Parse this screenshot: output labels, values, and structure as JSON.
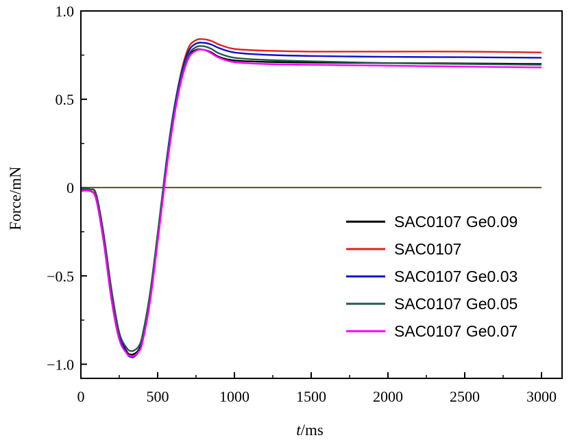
{
  "chart_data": {
    "type": "line",
    "title": "",
    "xlabel_italic": "t",
    "xlabel_rest": "/ms",
    "ylabel": "Force/mN",
    "xlim": [
      0,
      3000
    ],
    "ylim": [
      -1.08,
      1.0
    ],
    "xticks": [
      0,
      500,
      1000,
      1500,
      2000,
      2500,
      3000
    ],
    "xtick_labels": [
      "0",
      "500",
      "1000",
      "1500",
      "2000",
      "2500",
      "3000"
    ],
    "yticks": [
      -1.0,
      -0.5,
      0,
      0.5,
      1.0
    ],
    "ytick_labels": [
      "−1.0",
      "−0.5",
      "0",
      "0.5",
      "1.0"
    ],
    "grid": false,
    "legend_position": "center-right",
    "zero_line": {
      "y": 0,
      "x_range": [
        0,
        3000
      ],
      "color": "#5a5200"
    },
    "series": [
      {
        "name": "SAC0107 Ge0.09",
        "color": "#000000",
        "x": [
          0,
          60,
          100,
          150,
          200,
          250,
          300,
          330,
          350,
          375,
          400,
          450,
          500,
          550,
          600,
          650,
          700,
          750,
          800,
          850,
          900,
          1000,
          1200,
          1500,
          2000,
          2500,
          3000
        ],
        "y": [
          -0.01,
          -0.01,
          -0.04,
          -0.28,
          -0.6,
          -0.83,
          -0.93,
          -0.945,
          -0.94,
          -0.92,
          -0.86,
          -0.62,
          -0.28,
          0.08,
          0.38,
          0.6,
          0.74,
          0.78,
          0.78,
          0.765,
          0.74,
          0.72,
          0.712,
          0.708,
          0.705,
          0.703,
          0.7
        ]
      },
      {
        "name": "SAC0107",
        "color": "#e02020",
        "x": [
          0,
          60,
          100,
          150,
          200,
          250,
          300,
          330,
          350,
          375,
          400,
          450,
          500,
          550,
          600,
          650,
          700,
          750,
          800,
          850,
          900,
          1000,
          1200,
          1500,
          2000,
          2500,
          3000
        ],
        "y": [
          -0.015,
          -0.02,
          -0.06,
          -0.31,
          -0.63,
          -0.85,
          -0.94,
          -0.955,
          -0.95,
          -0.93,
          -0.87,
          -0.63,
          -0.29,
          0.08,
          0.4,
          0.64,
          0.79,
          0.835,
          0.84,
          0.83,
          0.81,
          0.785,
          0.775,
          0.77,
          0.77,
          0.77,
          0.765
        ]
      },
      {
        "name": "SAC0107 Ge0.03",
        "color": "#1010d0",
        "x": [
          0,
          60,
          100,
          150,
          200,
          250,
          300,
          330,
          350,
          375,
          400,
          450,
          500,
          550,
          600,
          650,
          700,
          750,
          800,
          850,
          900,
          1000,
          1200,
          1500,
          2000,
          2500,
          3000
        ],
        "y": [
          -0.005,
          -0.01,
          -0.04,
          -0.28,
          -0.6,
          -0.84,
          -0.94,
          -0.96,
          -0.955,
          -0.93,
          -0.87,
          -0.62,
          -0.27,
          0.1,
          0.41,
          0.63,
          0.77,
          0.815,
          0.82,
          0.81,
          0.79,
          0.765,
          0.752,
          0.745,
          0.74,
          0.738,
          0.735
        ]
      },
      {
        "name": "SAC0107 Ge0.05",
        "color": "#1f5a4d",
        "x": [
          0,
          60,
          100,
          150,
          200,
          250,
          300,
          330,
          350,
          375,
          400,
          450,
          500,
          550,
          600,
          650,
          700,
          750,
          800,
          850,
          900,
          1000,
          1200,
          1500,
          2000,
          2500,
          3000
        ],
        "y": [
          -0.005,
          -0.01,
          -0.04,
          -0.27,
          -0.58,
          -0.82,
          -0.91,
          -0.925,
          -0.92,
          -0.9,
          -0.84,
          -0.6,
          -0.26,
          0.09,
          0.39,
          0.61,
          0.75,
          0.795,
          0.8,
          0.785,
          0.76,
          0.735,
          0.723,
          0.715,
          0.705,
          0.7,
          0.695
        ]
      },
      {
        "name": "SAC0107 Ge0.07",
        "color": "#ff00ff",
        "x": [
          0,
          60,
          100,
          150,
          200,
          250,
          300,
          330,
          350,
          375,
          400,
          450,
          500,
          550,
          600,
          650,
          700,
          750,
          800,
          850,
          900,
          1000,
          1200,
          1500,
          2000,
          2500,
          3000
        ],
        "y": [
          -0.02,
          -0.02,
          -0.07,
          -0.32,
          -0.64,
          -0.86,
          -0.94,
          -0.955,
          -0.95,
          -0.93,
          -0.88,
          -0.65,
          -0.31,
          0.05,
          0.36,
          0.59,
          0.73,
          0.775,
          0.78,
          0.76,
          0.735,
          0.71,
          0.7,
          0.695,
          0.69,
          0.685,
          0.68
        ]
      }
    ]
  }
}
